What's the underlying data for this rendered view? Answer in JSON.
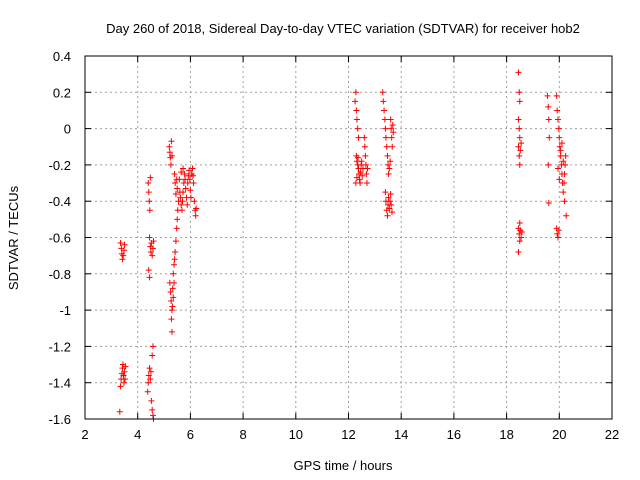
{
  "chart_data": {
    "type": "scatter",
    "title": "Day 260 of 2018, Sidereal Day-to-day VTEC variation (SDTVAR) for receiver hob2",
    "xlabel": "GPS time / hours",
    "ylabel": "SDTVAR / TECUs",
    "xlim": [
      2,
      22
    ],
    "ylim": [
      -1.6,
      0.4
    ],
    "xticks": [
      "2",
      "4",
      "6",
      "8",
      "10",
      "12",
      "14",
      "16",
      "18",
      "20",
      "22"
    ],
    "yticks": [
      "0.4",
      "0.2",
      "0",
      "-0.2",
      "-0.4",
      "-0.6",
      "-0.8",
      "-1",
      "-1.2",
      "-1.4",
      "-1.6"
    ],
    "grid": true,
    "marker": "+",
    "color": "#ff0000",
    "series": [
      {
        "name": "SDTVAR",
        "points": [
          [
            3.35,
            -0.63
          ],
          [
            3.38,
            -0.66
          ],
          [
            3.4,
            -0.69
          ],
          [
            3.42,
            -0.72
          ],
          [
            3.45,
            -0.7
          ],
          [
            3.48,
            -0.67
          ],
          [
            3.5,
            -0.64
          ],
          [
            3.32,
            -1.56
          ],
          [
            3.35,
            -1.42
          ],
          [
            3.37,
            -1.38
          ],
          [
            3.4,
            -1.35
          ],
          [
            3.42,
            -1.32
          ],
          [
            3.44,
            -1.3
          ],
          [
            3.46,
            -1.36
          ],
          [
            3.48,
            -1.4
          ],
          [
            3.5,
            -1.34
          ],
          [
            3.52,
            -1.38
          ],
          [
            3.54,
            -1.31
          ],
          [
            4.4,
            -0.3
          ],
          [
            4.42,
            -0.35
          ],
          [
            4.44,
            -0.4
          ],
          [
            4.46,
            -0.45
          ],
          [
            4.48,
            -0.27
          ],
          [
            4.45,
            -0.6
          ],
          [
            4.48,
            -0.65
          ],
          [
            4.5,
            -0.68
          ],
          [
            4.52,
            -0.63
          ],
          [
            4.55,
            -0.7
          ],
          [
            4.58,
            -0.66
          ],
          [
            4.6,
            -0.62
          ],
          [
            4.42,
            -0.78
          ],
          [
            4.45,
            -0.82
          ],
          [
            4.38,
            -1.45
          ],
          [
            4.4,
            -1.4
          ],
          [
            4.42,
            -1.36
          ],
          [
            4.45,
            -1.32
          ],
          [
            4.48,
            -1.38
          ],
          [
            4.5,
            -1.34
          ],
          [
            4.52,
            -1.5
          ],
          [
            4.55,
            -1.55
          ],
          [
            4.58,
            -1.58
          ],
          [
            4.6,
            -1.6
          ],
          [
            4.55,
            -1.25
          ],
          [
            4.58,
            -1.2
          ],
          [
            5.2,
            -0.1
          ],
          [
            5.22,
            -0.13
          ],
          [
            5.24,
            -0.16
          ],
          [
            5.26,
            -0.2
          ],
          [
            5.28,
            -0.07
          ],
          [
            5.3,
            -0.15
          ],
          [
            5.22,
            -0.85
          ],
          [
            5.25,
            -0.9
          ],
          [
            5.27,
            -0.95
          ],
          [
            5.3,
            -1.0
          ],
          [
            5.28,
            -1.05
          ],
          [
            5.3,
            -1.12
          ],
          [
            5.33,
            -0.88
          ],
          [
            5.35,
            -0.8
          ],
          [
            5.38,
            -0.75
          ],
          [
            5.4,
            -0.72
          ],
          [
            5.42,
            -0.68
          ],
          [
            5.45,
            -0.62
          ],
          [
            5.48,
            -0.55
          ],
          [
            5.5,
            -0.5
          ],
          [
            5.52,
            -0.45
          ],
          [
            5.55,
            -0.4
          ],
          [
            5.5,
            -0.33
          ],
          [
            5.48,
            -0.28
          ],
          [
            5.4,
            -0.25
          ],
          [
            5.42,
            -0.3
          ],
          [
            5.45,
            -0.36
          ],
          [
            5.32,
            -0.98
          ],
          [
            5.35,
            -0.93
          ],
          [
            5.38,
            -0.85
          ],
          [
            5.6,
            -0.35
          ],
          [
            5.62,
            -0.38
          ],
          [
            5.65,
            -0.42
          ],
          [
            5.68,
            -0.45
          ],
          [
            5.7,
            -0.4
          ],
          [
            5.72,
            -0.35
          ],
          [
            5.75,
            -0.3
          ],
          [
            5.78,
            -0.25
          ],
          [
            5.8,
            -0.28
          ],
          [
            5.82,
            -0.33
          ],
          [
            5.85,
            -0.38
          ],
          [
            5.88,
            -0.42
          ],
          [
            5.9,
            -0.3
          ],
          [
            5.92,
            -0.26
          ],
          [
            5.95,
            -0.23
          ],
          [
            5.98,
            -0.28
          ],
          [
            6.0,
            -0.34
          ],
          [
            6.02,
            -0.38
          ],
          [
            6.05,
            -0.25
          ],
          [
            6.08,
            -0.22
          ],
          [
            6.1,
            -0.26
          ],
          [
            6.12,
            -0.3
          ],
          [
            6.15,
            -0.4
          ],
          [
            6.18,
            -0.45
          ],
          [
            6.2,
            -0.48
          ],
          [
            6.22,
            -0.44
          ],
          [
            5.58,
            -0.28
          ],
          [
            5.65,
            -0.24
          ],
          [
            5.72,
            -0.22
          ],
          [
            12.25,
            0.15
          ],
          [
            12.28,
            0.2
          ],
          [
            12.3,
            0.1
          ],
          [
            12.32,
            0.05
          ],
          [
            12.35,
            0.0
          ],
          [
            12.38,
            -0.05
          ],
          [
            12.3,
            -0.15
          ],
          [
            12.32,
            -0.18
          ],
          [
            12.35,
            -0.2
          ],
          [
            12.38,
            -0.22
          ],
          [
            12.4,
            -0.25
          ],
          [
            12.42,
            -0.28
          ],
          [
            12.44,
            -0.3
          ],
          [
            12.46,
            -0.24
          ],
          [
            12.48,
            -0.2
          ],
          [
            12.5,
            -0.18
          ],
          [
            12.52,
            -0.26
          ],
          [
            12.55,
            -0.22
          ],
          [
            12.28,
            -0.3
          ],
          [
            12.32,
            -0.27
          ],
          [
            12.36,
            -0.16
          ],
          [
            12.6,
            -0.05
          ],
          [
            12.62,
            -0.1
          ],
          [
            12.64,
            -0.15
          ],
          [
            12.66,
            -0.2
          ],
          [
            12.68,
            -0.25
          ],
          [
            12.7,
            -0.3
          ],
          [
            12.72,
            -0.22
          ],
          [
            13.3,
            0.2
          ],
          [
            13.32,
            0.15
          ],
          [
            13.35,
            0.1
          ],
          [
            13.38,
            0.05
          ],
          [
            13.4,
            0.0
          ],
          [
            13.42,
            -0.05
          ],
          [
            13.45,
            -0.1
          ],
          [
            13.48,
            -0.15
          ],
          [
            13.5,
            -0.2
          ],
          [
            13.52,
            -0.25
          ],
          [
            13.55,
            -0.22
          ],
          [
            13.58,
            -0.18
          ],
          [
            13.4,
            -0.35
          ],
          [
            13.42,
            -0.4
          ],
          [
            13.45,
            -0.45
          ],
          [
            13.48,
            -0.48
          ],
          [
            13.5,
            -0.42
          ],
          [
            13.52,
            -0.38
          ],
          [
            13.55,
            -0.44
          ],
          [
            13.58,
            -0.4
          ],
          [
            13.6,
            -0.36
          ],
          [
            13.62,
            -0.42
          ],
          [
            13.65,
            -0.46
          ],
          [
            13.6,
            0.05
          ],
          [
            13.62,
            0.0
          ],
          [
            13.64,
            -0.05
          ],
          [
            13.66,
            -0.1
          ],
          [
            13.68,
            0.02
          ],
          [
            13.7,
            -0.02
          ],
          [
            18.45,
            0.31
          ],
          [
            18.48,
            0.2
          ],
          [
            18.5,
            0.15
          ],
          [
            18.45,
            0.05
          ],
          [
            18.48,
            0.0
          ],
          [
            18.5,
            -0.05
          ],
          [
            18.45,
            -0.1
          ],
          [
            18.48,
            -0.15
          ],
          [
            18.5,
            -0.2
          ],
          [
            18.52,
            -0.12
          ],
          [
            18.55,
            -0.08
          ],
          [
            18.45,
            -0.55
          ],
          [
            18.48,
            -0.58
          ],
          [
            18.5,
            -0.52
          ],
          [
            18.52,
            -0.56
          ],
          [
            18.55,
            -0.6
          ],
          [
            18.58,
            -0.57
          ],
          [
            18.45,
            -0.68
          ],
          [
            18.5,
            -0.62
          ],
          [
            19.55,
            0.18
          ],
          [
            19.58,
            0.12
          ],
          [
            19.6,
            0.05
          ],
          [
            19.62,
            -0.05
          ],
          [
            19.58,
            -0.2
          ],
          [
            19.6,
            -0.41
          ],
          [
            19.9,
            0.18
          ],
          [
            19.92,
            0.1
          ],
          [
            19.95,
            0.05
          ],
          [
            19.98,
            0.0
          ],
          [
            20.0,
            -0.05
          ],
          [
            20.02,
            -0.1
          ],
          [
            20.05,
            -0.15
          ],
          [
            20.08,
            -0.2
          ],
          [
            20.1,
            -0.25
          ],
          [
            20.12,
            -0.3
          ],
          [
            20.15,
            -0.35
          ],
          [
            20.18,
            -0.3
          ],
          [
            20.2,
            -0.25
          ],
          [
            20.22,
            -0.2
          ],
          [
            20.24,
            -0.15
          ],
          [
            20.26,
            -0.48
          ],
          [
            19.95,
            -0.22
          ],
          [
            20.0,
            -0.28
          ],
          [
            20.05,
            -0.12
          ],
          [
            20.1,
            -0.08
          ],
          [
            20.15,
            -0.18
          ],
          [
            20.2,
            -0.4
          ],
          [
            19.9,
            -0.55
          ],
          [
            19.92,
            -0.58
          ],
          [
            19.95,
            -0.6
          ],
          [
            19.98,
            -0.56
          ]
        ]
      }
    ]
  }
}
